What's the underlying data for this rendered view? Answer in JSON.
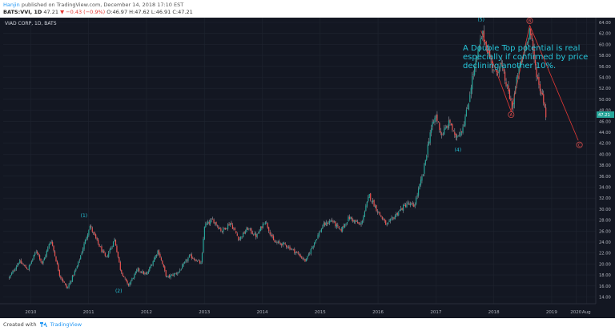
{
  "header": {
    "author": "Hanjin",
    "published_text": "published on TradingView.com, December 14, 2018 17:10 EST",
    "symbol": "BATS:VVI, 1D",
    "last": "47.21",
    "change": "−0.43 (−0.9%)",
    "ohlc": "O:46.97 H:47.62 L:46.91 C:47.21"
  },
  "footer": {
    "created_with": "Created with",
    "brand": "TradingView"
  },
  "colors": {
    "background": "#131722",
    "up": "#26a69a",
    "down": "#ef5350",
    "wick": "#b2b5be",
    "wave_label": "#26c6da",
    "abc_label": "#ef5350",
    "last_price_tag": "#26a69a"
  },
  "chart_data": {
    "type": "candlestick",
    "title": "VIAD CORP, 1D, BATS",
    "y_axis_side": "right",
    "ylim": [
      12.5,
      65
    ],
    "y_ticks": [
      "14.00",
      "16.00",
      "18.00",
      "20.00",
      "22.00",
      "24.00",
      "26.00",
      "28.00",
      "30.00",
      "32.00",
      "34.00",
      "36.00",
      "38.00",
      "40.00",
      "42.00",
      "44.00",
      "46.00",
      "48.00",
      "50.00",
      "52.00",
      "54.00",
      "56.00",
      "58.00",
      "60.00",
      "62.00",
      "64.00"
    ],
    "x_range": [
      "2009-07",
      "2019-10"
    ],
    "x_ticks": [
      {
        "label": "2010",
        "t": 2010.0
      },
      {
        "label": "2011",
        "t": 2011.0
      },
      {
        "label": "2012",
        "t": 2012.0
      },
      {
        "label": "2013",
        "t": 2013.0
      },
      {
        "label": "2014",
        "t": 2014.0
      },
      {
        "label": "2015",
        "t": 2015.0
      },
      {
        "label": "2016",
        "t": 2016.0
      },
      {
        "label": "2017",
        "t": 2017.0
      },
      {
        "label": "2018",
        "t": 2018.0
      },
      {
        "label": "2019",
        "t": 2019.0
      },
      {
        "label": "2020",
        "t": 2019.42
      },
      {
        "label": "Aug",
        "t": 2019.6
      }
    ],
    "last_price": "47.21",
    "price_path": [
      [
        2009.63,
        17.5
      ],
      [
        2009.8,
        20.5
      ],
      [
        2009.95,
        19.0
      ],
      [
        2010.1,
        22.5
      ],
      [
        2010.2,
        20.0
      ],
      [
        2010.35,
        24.5
      ],
      [
        2010.5,
        18.0
      ],
      [
        2010.63,
        15.5
      ],
      [
        2010.8,
        19.5
      ],
      [
        2010.95,
        24.5
      ],
      [
        2011.02,
        27.0
      ],
      [
        2011.15,
        24.0
      ],
      [
        2011.3,
        21.0
      ],
      [
        2011.45,
        24.5
      ],
      [
        2011.55,
        19.0
      ],
      [
        2011.68,
        16.0
      ],
      [
        2011.85,
        19.0
      ],
      [
        2012.0,
        18.0
      ],
      [
        2012.2,
        22.5
      ],
      [
        2012.35,
        17.5
      ],
      [
        2012.55,
        18.5
      ],
      [
        2012.75,
        21.5
      ],
      [
        2012.95,
        20.0
      ],
      [
        2013.0,
        27.0
      ],
      [
        2013.15,
        28.0
      ],
      [
        2013.3,
        26.0
      ],
      [
        2013.45,
        27.5
      ],
      [
        2013.6,
        24.5
      ],
      [
        2013.75,
        26.5
      ],
      [
        2013.9,
        25.0
      ],
      [
        2014.05,
        28.0
      ],
      [
        2014.2,
        24.0
      ],
      [
        2014.4,
        23.5
      ],
      [
        2014.6,
        22.0
      ],
      [
        2014.75,
        20.5
      ],
      [
        2014.9,
        24.0
      ],
      [
        2015.05,
        27.0
      ],
      [
        2015.2,
        28.0
      ],
      [
        2015.35,
        26.0
      ],
      [
        2015.5,
        28.5
      ],
      [
        2015.7,
        27.0
      ],
      [
        2015.85,
        32.5
      ],
      [
        2016.0,
        29.5
      ],
      [
        2016.15,
        27.0
      ],
      [
        2016.35,
        29.5
      ],
      [
        2016.5,
        31.0
      ],
      [
        2016.62,
        30.5
      ],
      [
        2016.7,
        33.5
      ],
      [
        2016.78,
        36.5
      ],
      [
        2016.82,
        39.0
      ],
      [
        2016.9,
        44.0
      ],
      [
        2017.0,
        47.0
      ],
      [
        2017.1,
        43.5
      ],
      [
        2017.25,
        46.0
      ],
      [
        2017.32,
        43.0
      ],
      [
        2017.45,
        44.5
      ],
      [
        2017.55,
        48.5
      ],
      [
        2017.62,
        53.5
      ],
      [
        2017.72,
        58.0
      ],
      [
        2017.8,
        62.0
      ],
      [
        2017.92,
        58.0
      ],
      [
        2018.02,
        54.5
      ],
      [
        2018.12,
        56.5
      ],
      [
        2018.22,
        52.5
      ],
      [
        2018.32,
        48.5
      ],
      [
        2018.42,
        55.0
      ],
      [
        2018.52,
        58.5
      ],
      [
        2018.62,
        63.0
      ],
      [
        2018.7,
        57.0
      ],
      [
        2018.78,
        52.5
      ],
      [
        2018.85,
        50.5
      ],
      [
        2018.9,
        47.2
      ]
    ],
    "wave_labels": [
      {
        "label": "(1)",
        "t": 2010.92,
        "price": 28.5
      },
      {
        "label": "(2)",
        "t": 2011.52,
        "price": 14.8
      },
      {
        "label": "(4)",
        "t": 2017.38,
        "price": 40.5
      },
      {
        "label": "(5)",
        "t": 2017.78,
        "price": 64.2
      }
    ],
    "abc_labels": [
      {
        "label": "A",
        "t": 2018.3,
        "price": 47.2
      },
      {
        "label": "B",
        "t": 2018.62,
        "price": 64.3
      },
      {
        "label": "C",
        "t": 2019.48,
        "price": 41.7
      }
    ],
    "trend_lines": [
      [
        [
          2017.78,
          62.5
        ],
        [
          2018.3,
          47.8
        ]
      ],
      [
        [
          2018.3,
          47.8
        ],
        [
          2018.62,
          63.5
        ]
      ],
      [
        [
          2018.62,
          63.5
        ],
        [
          2019.46,
          42.5
        ]
      ]
    ],
    "annotation": "A Double Top potential is real especially if confirmed by price declining another 10%."
  }
}
